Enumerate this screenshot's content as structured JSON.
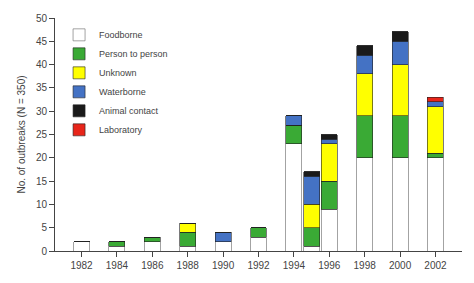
{
  "chart_data": {
    "type": "bar",
    "stacked": true,
    "x": [
      1982,
      1984,
      1986,
      1988,
      1990,
      1992,
      1994,
      1995,
      1996,
      1998,
      2000,
      2002
    ],
    "series": [
      {
        "name": "Foodborne",
        "color": "#ffffff",
        "values": [
          2,
          1,
          2,
          1,
          2,
          3,
          23,
          1,
          9,
          20,
          20,
          20
        ]
      },
      {
        "name": "Person to person",
        "color": "#3aaa35",
        "values": [
          0,
          1,
          1,
          3,
          0,
          2,
          4,
          4,
          6,
          9,
          9,
          1
        ]
      },
      {
        "name": "Unknown",
        "color": "#ffff00",
        "values": [
          0,
          0,
          0,
          2,
          0,
          0,
          0,
          5,
          8,
          9,
          11,
          10
        ]
      },
      {
        "name": "Waterborne",
        "color": "#4472c4",
        "values": [
          0,
          0,
          0,
          0,
          2,
          0,
          2,
          6,
          1,
          4,
          5,
          1
        ]
      },
      {
        "name": "Animal contact",
        "color": "#1a1a1a",
        "values": [
          0,
          0,
          0,
          0,
          0,
          0,
          0,
          1,
          1,
          2,
          2,
          0
        ]
      },
      {
        "name": "Laboratory",
        "color": "#e8251a",
        "values": [
          0,
          0,
          0,
          0,
          0,
          0,
          0,
          0,
          0,
          0,
          0,
          1
        ]
      }
    ],
    "ylabel": "No. of outbreaks (N = 350)",
    "xlim": [
      1980.5,
      2003.5
    ],
    "xticks": [
      1982,
      1984,
      1986,
      1988,
      1990,
      1992,
      1994,
      1996,
      1998,
      2000,
      2002
    ],
    "ylim": [
      0,
      50
    ],
    "yticks": [
      0,
      5,
      10,
      15,
      20,
      25,
      30,
      35,
      40,
      45,
      50
    ],
    "grid": false,
    "legend": "upper left"
  }
}
